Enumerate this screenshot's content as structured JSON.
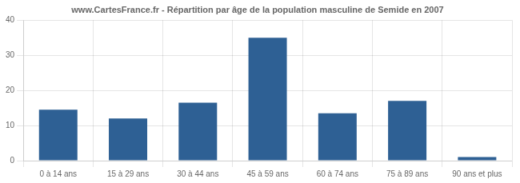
{
  "chart_data": {
    "type": "bar",
    "title": "www.CartesFrance.fr - Répartition par âge de la population masculine de Semide en 2007",
    "categories": [
      "0 à 14 ans",
      "15 à 29 ans",
      "30 à 44 ans",
      "45 à 59 ans",
      "60 à 74 ans",
      "75 à 89 ans",
      "90 ans et plus"
    ],
    "values": [
      14.5,
      12,
      16.5,
      35,
      13.5,
      17,
      1
    ],
    "color": "#2e6094",
    "ylim": [
      0,
      40
    ],
    "yticks": [
      0,
      10,
      20,
      30,
      40
    ],
    "grid": true
  }
}
